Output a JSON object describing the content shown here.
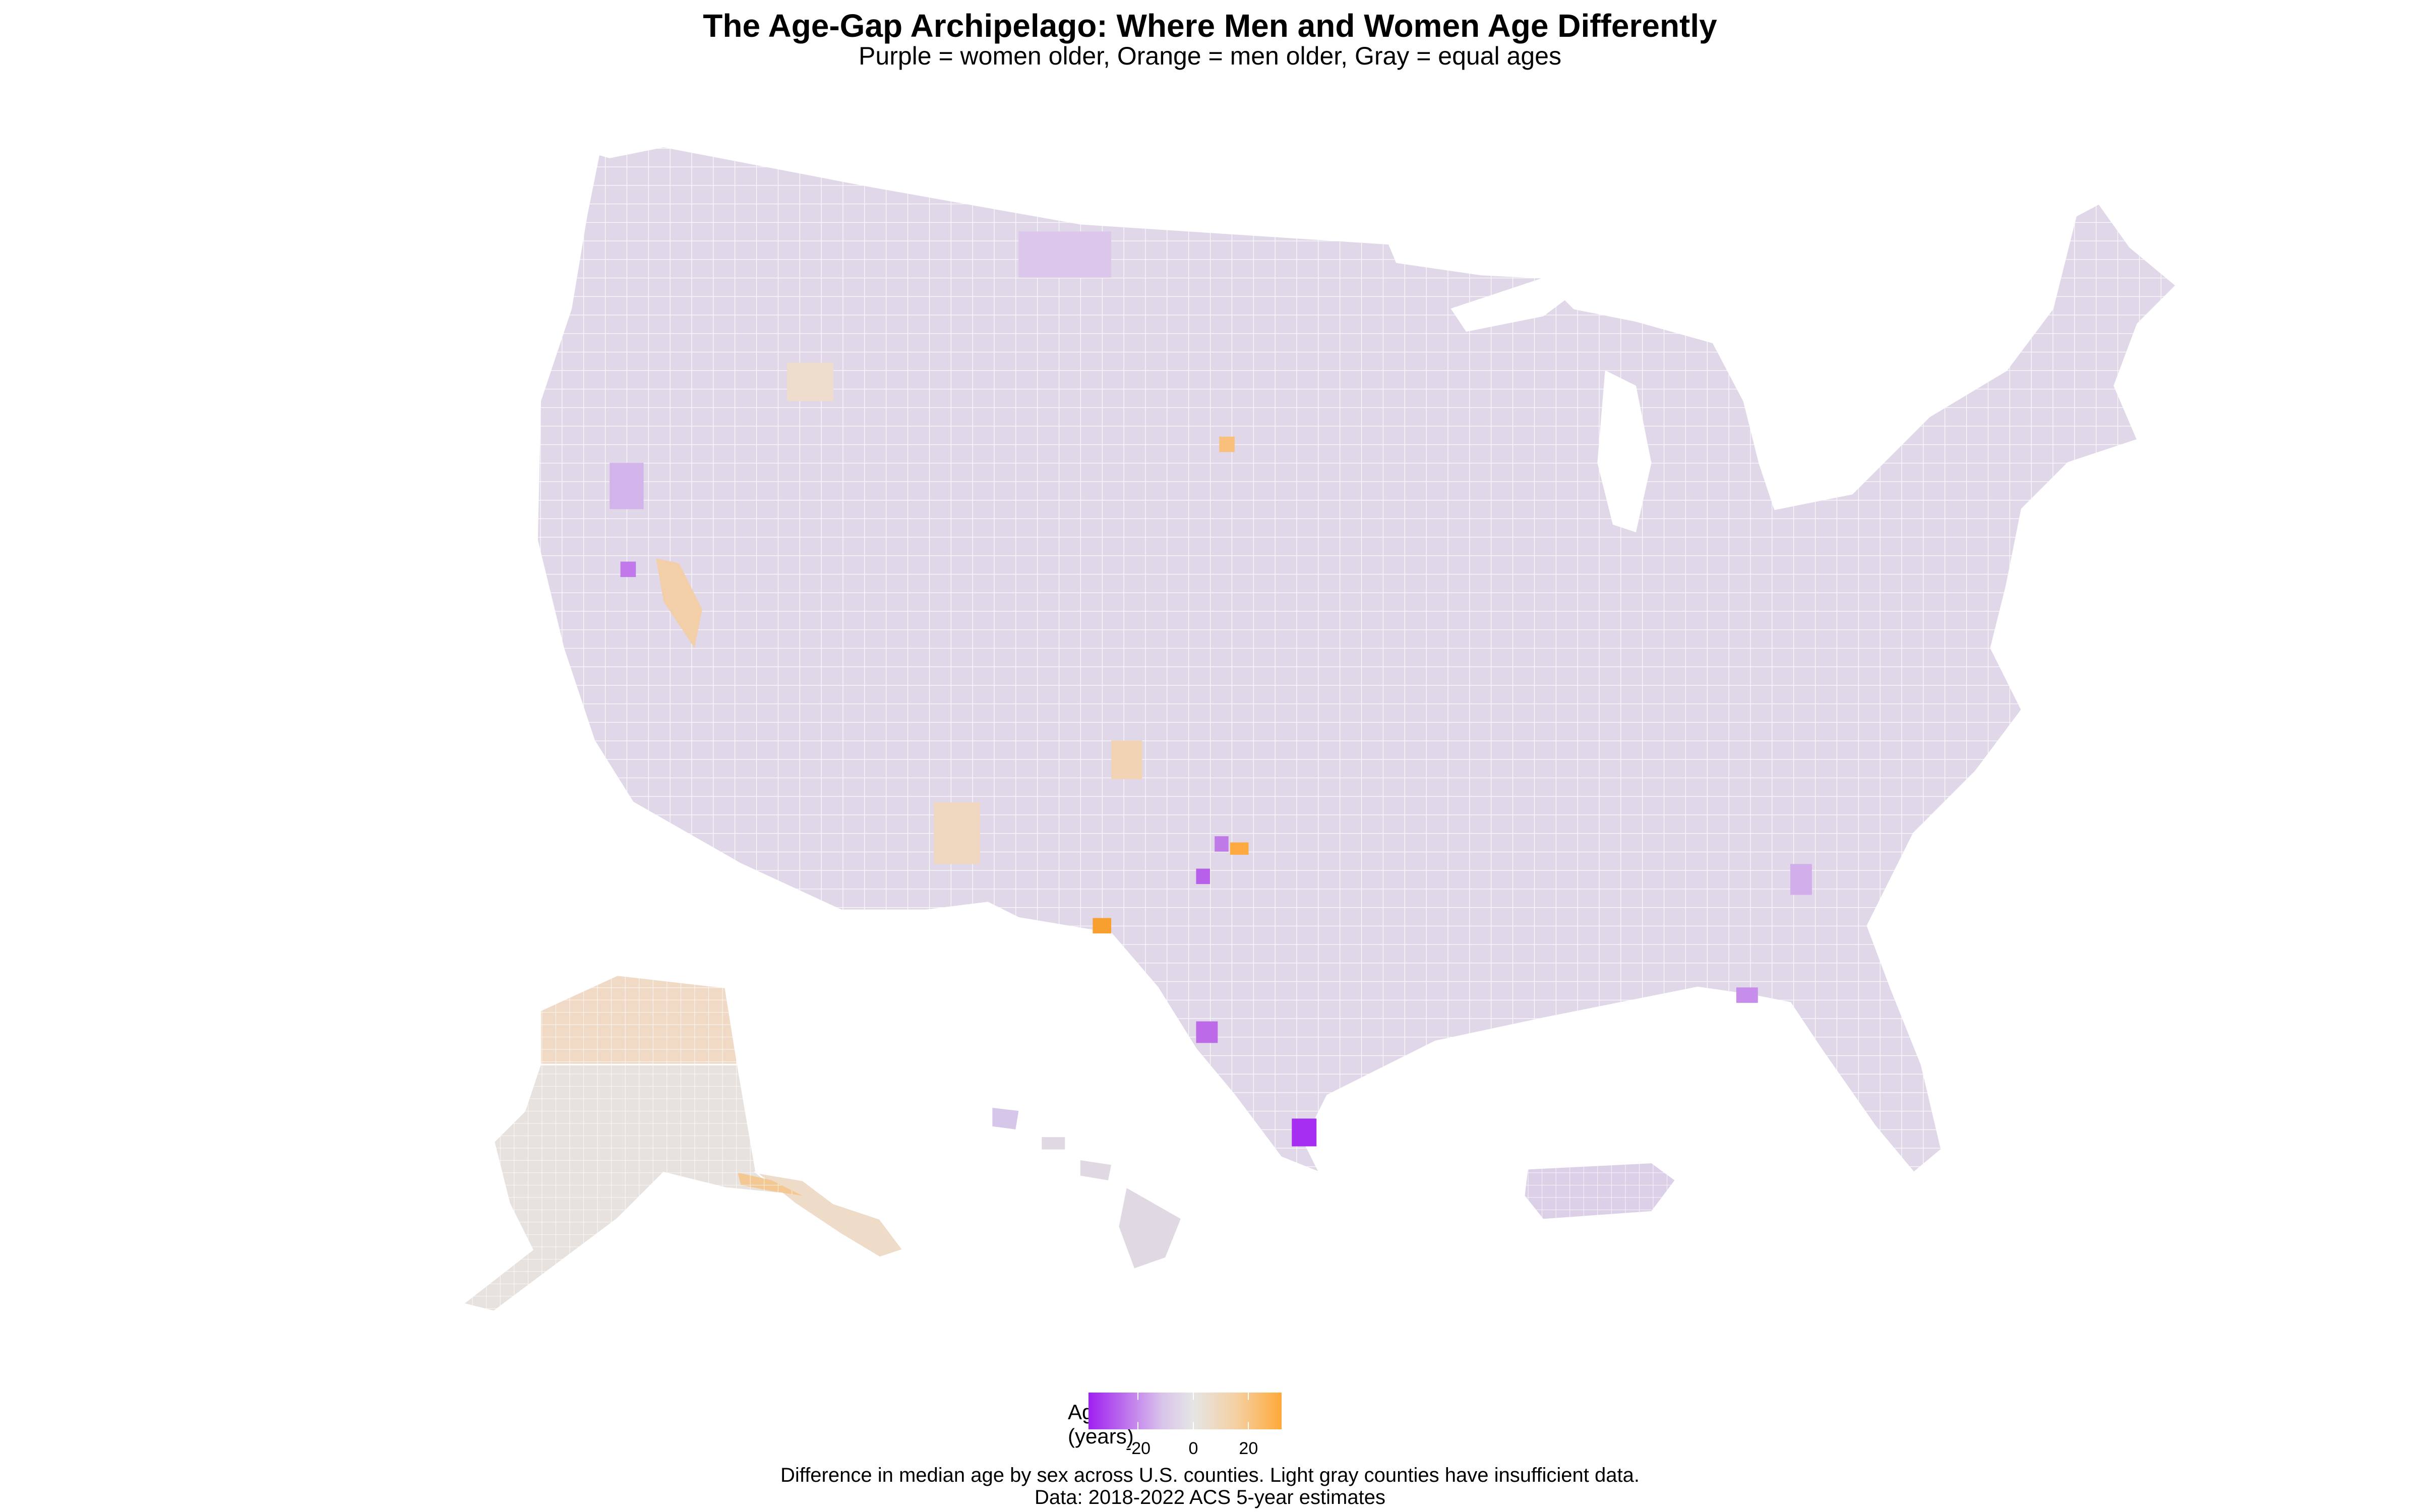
{
  "title": "The Age-Gap Archipelago: Where Men and Women Age Differently",
  "subtitle": "Purple = women older, Orange = men older, Gray = equal ages",
  "legend": {
    "title_line1": "Age Gap",
    "title_line2": "(years)",
    "range": [
      -38,
      32
    ],
    "ticks": [
      {
        "value": -20,
        "label": "-20"
      },
      {
        "value": 0,
        "label": "0"
      },
      {
        "value": 20,
        "label": "20"
      }
    ],
    "colors": {
      "low": "#a020f0",
      "mid": "#e5e5e5",
      "high": "#ffa93a"
    }
  },
  "caption_line1": "Difference in median age by sex across U.S. counties. Light gray counties have insufficient data.",
  "caption_line2": "Data: 2018-2022 ACS 5-year estimates",
  "colors": {
    "typical": "#e0d6e8",
    "no_data": "#e5e5e5",
    "border": "#ffffff"
  }
}
